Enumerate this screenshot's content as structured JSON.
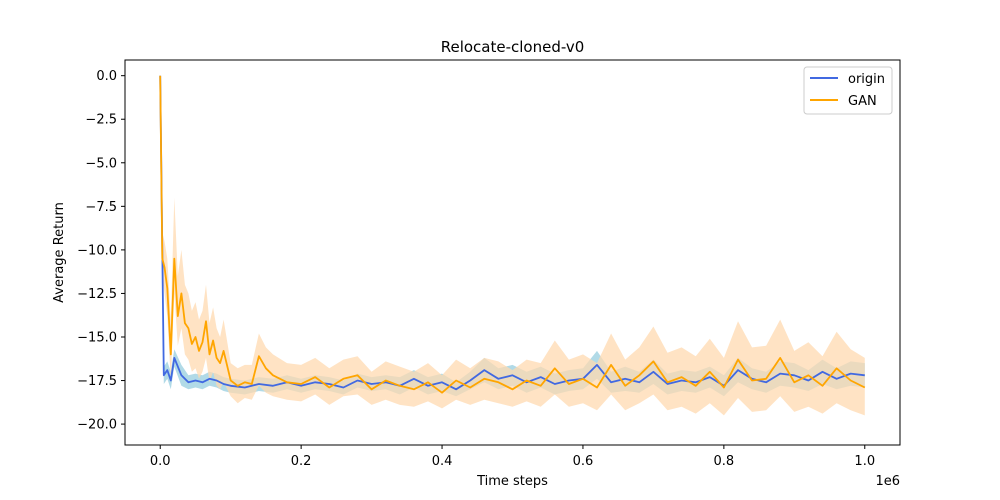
{
  "chart_data": {
    "type": "line",
    "title": "Relocate-cloned-v0",
    "xlabel": "Time steps",
    "ylabel": "Average Return",
    "x_offset_label": "1e6",
    "xlim": [
      -0.05,
      1.05
    ],
    "ylim": [
      -21.2,
      0.9
    ],
    "x_ticks": [
      0.0,
      0.2,
      0.4,
      0.6,
      0.8,
      1.0
    ],
    "x_tick_labels": [
      "0.0",
      "0.2",
      "0.4",
      "0.6",
      "0.8",
      "1.0"
    ],
    "y_ticks": [
      0.0,
      -2.5,
      -5.0,
      -7.5,
      -10.0,
      -12.5,
      -15.0,
      -17.5,
      -20.0
    ],
    "y_tick_labels": [
      "0.0",
      "−2.5",
      "−5.0",
      "−7.5",
      "−10.0",
      "−12.5",
      "−15.0",
      "−17.5",
      "−20.0"
    ],
    "grid": false,
    "legend_position": "top-right",
    "series": [
      {
        "name": "origin",
        "color": "#4169e1",
        "band_color": "#add8e6",
        "x": [
          0.0,
          0.005,
          0.01,
          0.015,
          0.02,
          0.03,
          0.04,
          0.05,
          0.06,
          0.07,
          0.08,
          0.09,
          0.1,
          0.12,
          0.14,
          0.16,
          0.18,
          0.2,
          0.22,
          0.24,
          0.26,
          0.28,
          0.3,
          0.32,
          0.34,
          0.36,
          0.38,
          0.4,
          0.42,
          0.44,
          0.46,
          0.48,
          0.5,
          0.52,
          0.54,
          0.56,
          0.58,
          0.6,
          0.62,
          0.64,
          0.66,
          0.68,
          0.7,
          0.72,
          0.74,
          0.76,
          0.78,
          0.8,
          0.82,
          0.84,
          0.86,
          0.88,
          0.9,
          0.92,
          0.94,
          0.96,
          0.98,
          1.0
        ],
        "mean": [
          0.0,
          -17.2,
          -16.9,
          -17.5,
          -16.2,
          -17.2,
          -17.6,
          -17.5,
          -17.6,
          -17.4,
          -17.5,
          -17.7,
          -17.8,
          -17.9,
          -17.7,
          -17.8,
          -17.6,
          -17.8,
          -17.6,
          -17.7,
          -17.9,
          -17.5,
          -17.7,
          -17.6,
          -17.8,
          -17.4,
          -17.8,
          -17.6,
          -18.0,
          -17.5,
          -16.9,
          -17.4,
          -17.2,
          -17.6,
          -17.3,
          -17.7,
          -17.5,
          -17.4,
          -16.6,
          -17.6,
          -17.4,
          -17.6,
          -17.0,
          -17.7,
          -17.5,
          -17.6,
          -17.3,
          -17.8,
          -16.9,
          -17.4,
          -17.6,
          -17.1,
          -17.2,
          -17.5,
          -17.0,
          -17.4,
          -17.1,
          -17.2
        ],
        "lower": [
          0.0,
          -17.7,
          -17.4,
          -18.0,
          -16.7,
          -17.8,
          -18.0,
          -17.9,
          -18.0,
          -17.8,
          -17.9,
          -18.1,
          -18.2,
          -18.3,
          -18.1,
          -18.2,
          -18.0,
          -18.2,
          -18.0,
          -18.1,
          -18.3,
          -17.9,
          -18.1,
          -18.0,
          -18.3,
          -17.9,
          -18.3,
          -18.1,
          -18.4,
          -18.0,
          -17.6,
          -18.0,
          -17.8,
          -18.2,
          -17.9,
          -18.3,
          -18.1,
          -18.0,
          -17.4,
          -18.2,
          -18.1,
          -18.2,
          -17.7,
          -18.3,
          -18.1,
          -18.2,
          -17.9,
          -18.4,
          -17.6,
          -18.0,
          -18.2,
          -17.8,
          -17.9,
          -18.1,
          -17.7,
          -18.0,
          -17.8,
          -17.9
        ],
        "upper": [
          0.0,
          -16.7,
          -16.4,
          -17.0,
          -15.7,
          -16.6,
          -17.2,
          -17.1,
          -17.2,
          -17.0,
          -17.1,
          -17.3,
          -17.4,
          -17.5,
          -17.3,
          -17.4,
          -17.2,
          -17.4,
          -17.2,
          -17.3,
          -17.5,
          -17.1,
          -17.3,
          -17.2,
          -17.3,
          -16.9,
          -17.3,
          -17.1,
          -17.6,
          -17.0,
          -16.2,
          -16.8,
          -16.6,
          -17.0,
          -16.7,
          -17.1,
          -16.9,
          -16.8,
          -15.8,
          -17.0,
          -16.7,
          -17.0,
          -16.3,
          -17.1,
          -16.9,
          -17.0,
          -16.7,
          -17.2,
          -16.2,
          -16.8,
          -17.0,
          -16.4,
          -16.5,
          -16.9,
          -16.3,
          -16.8,
          -16.4,
          -16.5
        ]
      },
      {
        "name": "GAN",
        "color": "#ffa500",
        "band_color": "#ffdab0",
        "x": [
          0.0,
          0.003,
          0.006,
          0.01,
          0.015,
          0.02,
          0.025,
          0.03,
          0.035,
          0.04,
          0.045,
          0.05,
          0.055,
          0.06,
          0.065,
          0.07,
          0.075,
          0.08,
          0.085,
          0.09,
          0.1,
          0.11,
          0.12,
          0.13,
          0.14,
          0.15,
          0.16,
          0.18,
          0.2,
          0.22,
          0.24,
          0.26,
          0.28,
          0.3,
          0.32,
          0.34,
          0.36,
          0.38,
          0.4,
          0.42,
          0.44,
          0.46,
          0.48,
          0.5,
          0.52,
          0.54,
          0.56,
          0.58,
          0.6,
          0.62,
          0.64,
          0.66,
          0.68,
          0.7,
          0.72,
          0.74,
          0.76,
          0.78,
          0.8,
          0.82,
          0.84,
          0.86,
          0.88,
          0.9,
          0.92,
          0.94,
          0.96,
          0.98,
          1.0
        ],
        "mean": [
          0.0,
          -10.5,
          -11.0,
          -12.2,
          -16.0,
          -10.5,
          -13.8,
          -12.5,
          -14.2,
          -14.5,
          -15.4,
          -15.0,
          -15.8,
          -15.3,
          -14.1,
          -16.0,
          -15.2,
          -16.2,
          -16.5,
          -15.8,
          -17.5,
          -17.8,
          -17.6,
          -17.7,
          -16.1,
          -16.8,
          -17.2,
          -17.6,
          -17.7,
          -17.3,
          -17.9,
          -17.4,
          -17.2,
          -18.0,
          -17.5,
          -17.8,
          -18.0,
          -17.6,
          -18.2,
          -17.5,
          -17.9,
          -17.4,
          -17.6,
          -18.0,
          -17.5,
          -17.8,
          -16.8,
          -17.7,
          -17.4,
          -17.9,
          -16.6,
          -17.8,
          -17.2,
          -16.4,
          -17.6,
          -17.3,
          -17.8,
          -17.0,
          -17.9,
          -16.3,
          -17.5,
          -17.4,
          -16.2,
          -17.6,
          -17.2,
          -17.8,
          -16.8,
          -17.5,
          -17.9
        ],
        "lower": [
          0.0,
          -11.5,
          -12.5,
          -13.8,
          -17.5,
          -12.5,
          -15.5,
          -14.5,
          -16.0,
          -16.3,
          -17.0,
          -16.8,
          -17.4,
          -17.0,
          -16.2,
          -17.6,
          -17.0,
          -17.8,
          -18.0,
          -17.6,
          -18.4,
          -18.8,
          -18.5,
          -18.6,
          -17.8,
          -18.2,
          -18.4,
          -18.6,
          -18.7,
          -18.3,
          -18.9,
          -18.4,
          -18.3,
          -18.9,
          -18.6,
          -18.9,
          -19.0,
          -18.7,
          -19.1,
          -18.6,
          -18.9,
          -18.6,
          -18.8,
          -19.0,
          -18.7,
          -19.0,
          -18.3,
          -19.0,
          -18.8,
          -19.2,
          -18.3,
          -19.2,
          -18.8,
          -18.3,
          -19.2,
          -19.0,
          -19.4,
          -18.8,
          -19.5,
          -18.5,
          -19.3,
          -19.2,
          -18.4,
          -19.3,
          -19.0,
          -19.4,
          -18.8,
          -19.2,
          -19.5
        ],
        "upper": [
          0.0,
          -9.0,
          -9.5,
          -10.5,
          -14.0,
          -7.0,
          -11.5,
          -10.0,
          -12.0,
          -12.5,
          -13.5,
          -13.0,
          -14.0,
          -13.5,
          -12.0,
          -14.2,
          -13.3,
          -14.5,
          -15.0,
          -14.0,
          -16.5,
          -16.8,
          -16.6,
          -16.6,
          -14.8,
          -15.6,
          -16.0,
          -16.5,
          -16.6,
          -16.2,
          -16.8,
          -16.3,
          -16.1,
          -17.0,
          -16.4,
          -16.7,
          -17.0,
          -16.5,
          -17.2,
          -16.3,
          -16.8,
          -16.2,
          -16.4,
          -16.9,
          -16.3,
          -16.5,
          -15.2,
          -16.3,
          -16.0,
          -16.5,
          -14.8,
          -16.3,
          -15.6,
          -14.4,
          -15.9,
          -15.6,
          -16.1,
          -15.1,
          -16.2,
          -14.1,
          -15.6,
          -15.5,
          -14.0,
          -15.8,
          -15.3,
          -16.1,
          -14.7,
          -15.7,
          -16.2
        ]
      }
    ]
  }
}
